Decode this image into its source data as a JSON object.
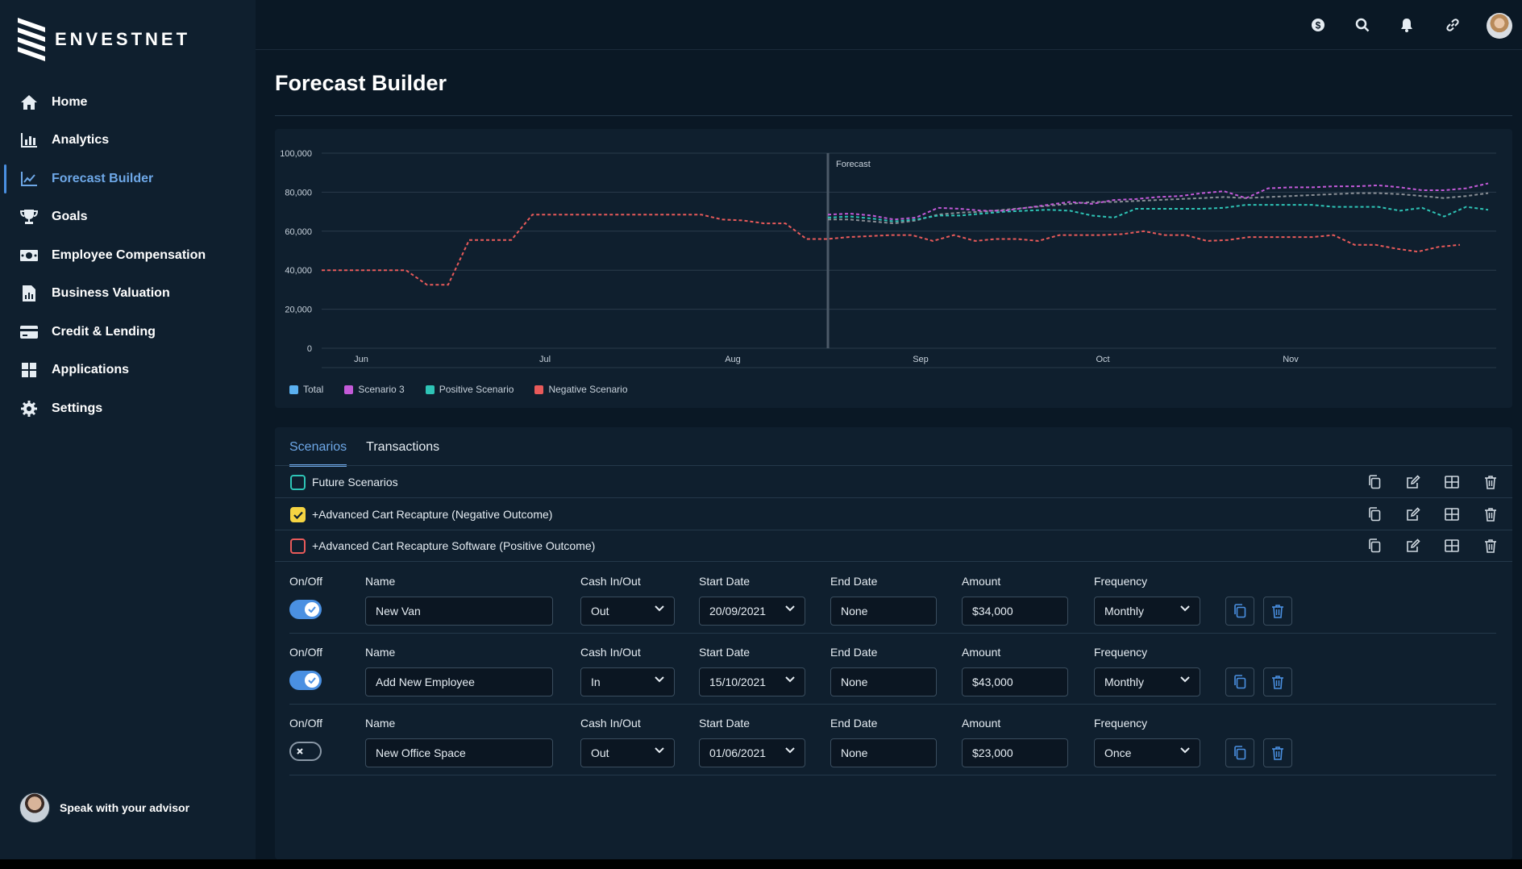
{
  "brand": {
    "name": "ENVESTNET"
  },
  "nav": {
    "items": [
      {
        "label": "Home",
        "icon": "home-icon"
      },
      {
        "label": "Analytics",
        "icon": "bar-chart-icon"
      },
      {
        "label": "Forecast Builder",
        "icon": "line-chart-icon",
        "active": true
      },
      {
        "label": "Goals",
        "icon": "trophy-icon"
      },
      {
        "label": "Employee Compensation",
        "icon": "cash-icon"
      },
      {
        "label": "Business Valuation",
        "icon": "document-chart-icon"
      },
      {
        "label": "Credit & Lending",
        "icon": "credit-card-icon"
      },
      {
        "label": "Applications",
        "icon": "grid-icon"
      },
      {
        "label": "Settings",
        "icon": "gear-icon"
      }
    ]
  },
  "advisor": {
    "label": "Speak with your advisor"
  },
  "topbar": {
    "icons": [
      "dollar-icon",
      "search-icon",
      "bell-icon",
      "link-icon",
      "user-avatar"
    ]
  },
  "page": {
    "title": "Forecast Builder"
  },
  "chart_data": {
    "type": "line",
    "title": "",
    "xlabel": "",
    "ylabel": "",
    "ylim": [
      0,
      100000
    ],
    "y_ticks": [
      "100,000",
      "80,000",
      "60,000",
      "40,000",
      "20,000",
      "0"
    ],
    "x_ticks": [
      "Jun",
      "Jul",
      "Aug",
      "Sep",
      "Oct",
      "Nov"
    ],
    "annotation": "Forecast",
    "grid": true,
    "legend_placement": "bottom-left",
    "line_style": "dashed",
    "series": [
      {
        "name": "Total",
        "color": "#5ab0f0",
        "values": []
      },
      {
        "name": "Scenario 3",
        "color": "#c35ad8",
        "values": [
          68500,
          69000,
          68000,
          66000,
          67000,
          72000,
          71500,
          70500,
          70500,
          72000,
          73500,
          75000,
          74000,
          76000,
          76500,
          77500,
          78000,
          79500,
          80500,
          77000,
          82000,
          82500,
          82500,
          83000,
          83000,
          83500,
          82500,
          81000,
          81000,
          82000,
          84500
        ]
      },
      {
        "name": "Positive Scenario",
        "color": "#2ec4b6",
        "values": [
          67000,
          67500,
          66500,
          65000,
          66000,
          68000,
          68000,
          69000,
          70000,
          70500,
          71000,
          70500,
          68000,
          67000,
          71500,
          71500,
          71500,
          71500,
          72000,
          73500,
          73500,
          73500,
          73500,
          72500,
          72500,
          72500,
          70500,
          72000,
          67500,
          72500,
          71000
        ]
      },
      {
        "name": "Negative Scenario",
        "color": "#e85a5a",
        "values": [
          40000,
          40000,
          40000,
          40000,
          40000,
          32500,
          32500,
          55500,
          55500,
          55500,
          68500,
          68500,
          68500,
          68500,
          68500,
          68500,
          68500,
          68500,
          68500,
          66000,
          65500,
          64000,
          64000,
          56000,
          56000,
          57000,
          57500,
          58000,
          58000,
          55000,
          58000,
          55000,
          56000,
          56000,
          55000,
          58000,
          58000,
          58000,
          58500,
          60000,
          58000,
          58000,
          55000,
          55500,
          57000,
          57000,
          57000,
          57000,
          58000,
          53000,
          53000,
          51000,
          49500,
          52000,
          53000
        ]
      },
      {
        "name": "",
        "color": "#8a8f96",
        "values": [
          66000,
          66000,
          65000,
          64000,
          65500,
          68500,
          69500,
          70000,
          71000,
          72000,
          73000,
          74000,
          75000,
          75000,
          75500,
          76000,
          76500,
          77000,
          77500,
          77000,
          77500,
          78000,
          78500,
          79000,
          79500,
          79500,
          79000,
          78000,
          77000,
          78000,
          79500
        ]
      }
    ]
  },
  "tabs": [
    {
      "label": "Scenarios",
      "active": true
    },
    {
      "label": "Transactions"
    }
  ],
  "scenarios": [
    {
      "name": "Future Scenarios",
      "checked": false,
      "color": "#2ec4b6"
    },
    {
      "name": "+Advanced Cart Recapture (Negative Outcome)",
      "checked": true,
      "color": "#f5d442"
    },
    {
      "name": "+Advanced Cart Recapture Software (Positive Outcome)",
      "checked": false,
      "color": "#e85a5a"
    }
  ],
  "columns": {
    "onoff": "On/Off",
    "name": "Name",
    "cash": "Cash In/Out",
    "start": "Start Date",
    "end": "End Date",
    "amount": "Amount",
    "frequency": "Frequency"
  },
  "transactions": [
    {
      "on": true,
      "name": "New Van",
      "cash": "Out",
      "start": "20/09/2021",
      "end": "None",
      "amount": "$34,000",
      "frequency": "Monthly"
    },
    {
      "on": true,
      "name": "Add New Employee",
      "cash": "In",
      "start": "15/10/2021",
      "end": "None",
      "amount": "$43,000",
      "frequency": "Monthly"
    },
    {
      "on": false,
      "name": "New Office Space",
      "cash": "Out",
      "start": "01/06/2021",
      "end": "None",
      "amount": "$23,000",
      "frequency": "Once"
    }
  ]
}
